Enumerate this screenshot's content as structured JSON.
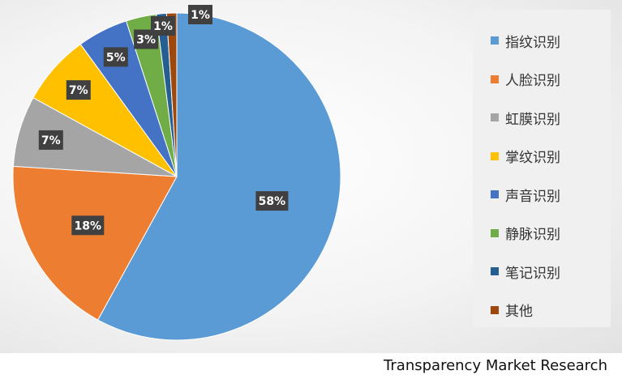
{
  "chart_data": {
    "type": "pie",
    "categories": [
      "指纹识别",
      "人脸识别",
      "虹膜识别",
      "掌纹识别",
      "声音识别",
      "静脉识别",
      "笔记识别",
      "其他"
    ],
    "values": [
      58,
      18,
      7,
      7,
      5,
      3,
      1,
      1
    ],
    "data_labels": [
      "58%",
      "18%",
      "7%",
      "7%",
      "5%",
      "3%",
      "1%",
      "1%"
    ],
    "colors": [
      "#5b9bd5",
      "#ed7d31",
      "#a5a5a5",
      "#ffc000",
      "#4472c4",
      "#70ad47",
      "#255e91",
      "#9e480e"
    ],
    "legend_position": "right",
    "start_angle_deg": 0,
    "direction": "clockwise"
  },
  "source": "Transparency Market Research"
}
